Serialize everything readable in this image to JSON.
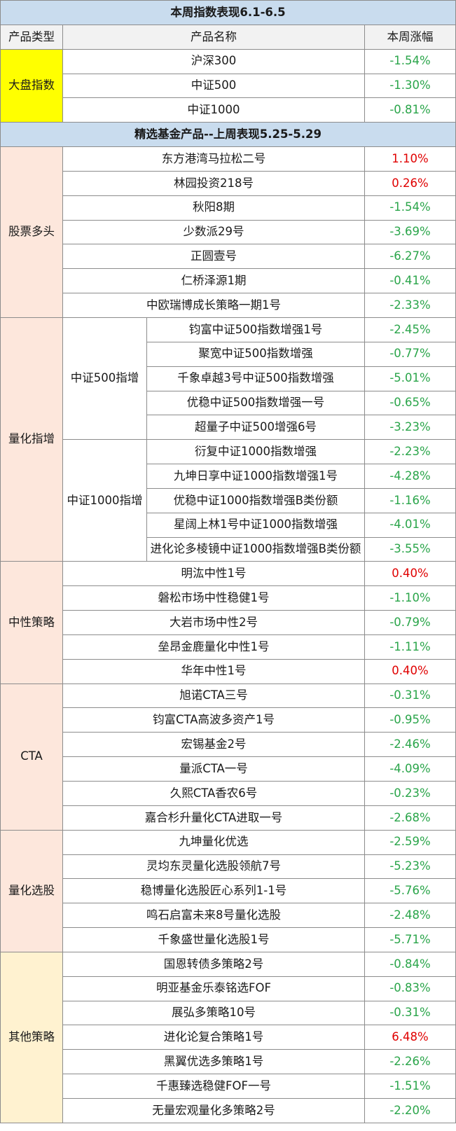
{
  "header1": "本周指数表现6.1-6.5",
  "columns": {
    "type": "产品类型",
    "name": "产品名称",
    "change": "本周涨幅"
  },
  "header2": "精选基金产品--上周表现5.25-5.29",
  "colors": {
    "up": "#e00000",
    "down": "#2aa54a",
    "band": "#c9dcee",
    "index_type": "#ffff00",
    "peach": "#fde7dc",
    "cream": "#fff2d0"
  },
  "index_group": {
    "type": "大盘指数",
    "rows": [
      {
        "name": "沪深300",
        "change": "-1.54%"
      },
      {
        "name": "中证500",
        "change": "-1.30%"
      },
      {
        "name": "中证1000",
        "change": "-0.81%"
      }
    ]
  },
  "equity": {
    "type": "股票多头",
    "rows": [
      {
        "name": "东方港湾马拉松二号",
        "change": "1.10%"
      },
      {
        "name": "林园投资218号",
        "change": "0.26%"
      },
      {
        "name": "秋阳8期",
        "change": "-1.54%"
      },
      {
        "name": "少数派29号",
        "change": "-3.69%"
      },
      {
        "name": "正圆壹号",
        "change": "-6.27%"
      },
      {
        "name": "仁桥泽源1期",
        "change": "-0.41%"
      },
      {
        "name": "中欧瑞博成长策略一期1号",
        "change": "-2.33%"
      }
    ]
  },
  "quant_index": {
    "type": "量化指增",
    "zz500": {
      "label": "中证500指增",
      "rows": [
        {
          "name": "钧富中证500指数增强1号",
          "change": "-2.45%"
        },
        {
          "name": "聚宽中证500指数增强",
          "change": "-0.77%"
        },
        {
          "name": "千象卓越3号中证500指数增强",
          "change": "-5.01%"
        },
        {
          "name": "优稳中证500指数增强一号",
          "change": "-0.65%"
        },
        {
          "name": "超量子中证500增强6号",
          "change": "-3.23%"
        }
      ]
    },
    "zz1000": {
      "label": "中证1000指增",
      "rows": [
        {
          "name": "衍复中证1000指数增强",
          "change": "-2.23%"
        },
        {
          "name": "九坤日享中证1000指数增强1号",
          "change": "-4.28%"
        },
        {
          "name": "优稳中证1000指数增强B类份额",
          "change": "-1.16%"
        },
        {
          "name": "星阔上林1号中证1000指数增强",
          "change": "-4.01%"
        },
        {
          "name": "进化论多棱镜中证1000指数增强B类份额",
          "change": "-3.55%"
        }
      ]
    }
  },
  "neutral": {
    "type": "中性策略",
    "rows": [
      {
        "name": "明汯中性1号",
        "change": "0.40%"
      },
      {
        "name": "磐松市场中性稳健1号",
        "change": "-1.10%"
      },
      {
        "name": "大岩市场中性2号",
        "change": "-0.79%"
      },
      {
        "name": "垒昂金鹿量化中性1号",
        "change": "-1.11%"
      },
      {
        "name": "华年中性1号",
        "change": "0.40%"
      }
    ]
  },
  "cta": {
    "type": "CTA",
    "rows": [
      {
        "name": "旭诺CTA三号",
        "change": "-0.31%"
      },
      {
        "name": "钧富CTA高波多资产1号",
        "change": "-0.95%"
      },
      {
        "name": "宏锡基金2号",
        "change": "-2.46%"
      },
      {
        "name": "量派CTA一号",
        "change": "-4.09%"
      },
      {
        "name": "久熙CTA香农6号",
        "change": "-0.23%"
      },
      {
        "name": "嘉合杉升量化CTA进取一号",
        "change": "-2.68%"
      }
    ]
  },
  "quant_stock": {
    "type": "量化选股",
    "rows": [
      {
        "name": "九坤量化优选",
        "change": "-2.59%"
      },
      {
        "name": "灵均东灵量化选股领航7号",
        "change": "-5.23%"
      },
      {
        "name": "稳博量化选股匠心系列1-1号",
        "change": "-5.76%"
      },
      {
        "name": "鸣石启富未来8号量化选股",
        "change": "-2.48%"
      },
      {
        "name": "千象盛世量化选股1号",
        "change": "-5.71%"
      }
    ]
  },
  "other": {
    "type": "其他策略",
    "rows": [
      {
        "name": "国恩转债多策略2号",
        "change": "-0.84%"
      },
      {
        "name": "明亚基金乐泰铭选FOF",
        "change": "-0.83%"
      },
      {
        "name": "展弘多策略10号",
        "change": "-0.31%"
      },
      {
        "name": "进化论复合策略1号",
        "change": "6.48%"
      },
      {
        "name": "黑翼优选多策略1号",
        "change": "-2.26%"
      },
      {
        "name": "千惠臻选稳健FOF一号",
        "change": "-1.51%"
      },
      {
        "name": "无量宏观量化多策略2号",
        "change": "-2.20%"
      }
    ]
  }
}
